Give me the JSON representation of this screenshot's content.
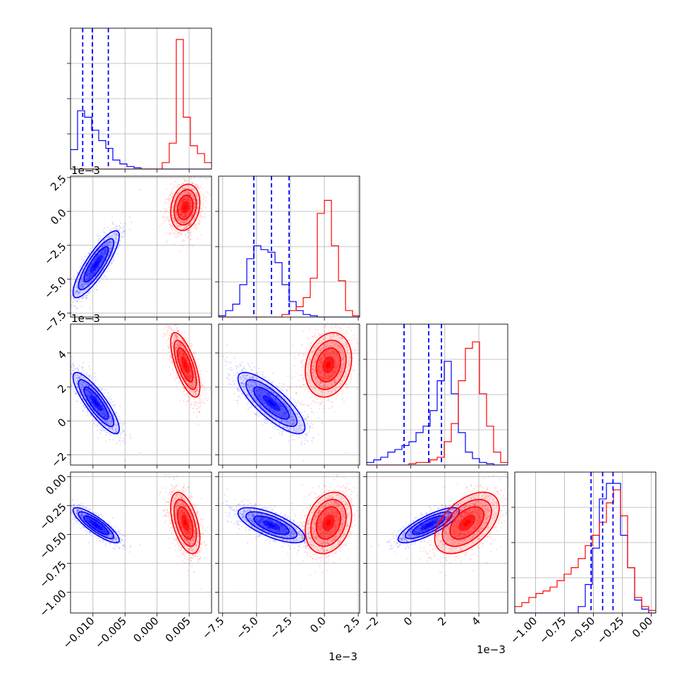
{
  "chart_data": {
    "type": "corner",
    "series_colors": {
      "blue": "#0000ff",
      "red": "#ff0000"
    },
    "quantile_line_style": "dashed",
    "grid": true,
    "offset_labels": {
      "row1": "1e−3",
      "row2": "1e−3",
      "col1": "1e−3",
      "col2": "1e−3"
    },
    "axes": [
      {
        "range": [
          -0.0135,
          0.0085
        ],
        "ticks": [
          -0.01,
          -0.005,
          0.0,
          0.005
        ],
        "tick_labels": [
          "−0.010",
          "−0.005",
          "0.000",
          "0.005"
        ]
      },
      {
        "range": [
          -7.8,
          2.6
        ],
        "ticks": [
          -7.5,
          -5.0,
          -2.5,
          0.0,
          2.5
        ],
        "tick_labels": [
          "−7.5",
          "−5.0",
          "−2.5",
          "0.0",
          "2.5"
        ]
      },
      {
        "range": [
          -2.6,
          5.7
        ],
        "ticks": [
          -2,
          0,
          2,
          4
        ],
        "tick_labels": [
          "−2",
          "0",
          "2",
          "4"
        ]
      },
      {
        "range": [
          -1.18,
          0.04
        ],
        "ticks": [
          -1.0,
          -0.75,
          -0.5,
          -0.25,
          0.0
        ],
        "tick_labels": [
          "−1.00",
          "−0.75",
          "−0.50",
          "−0.25",
          "0.00"
        ]
      }
    ],
    "marginals": [
      {
        "blue": {
          "edges_start": -0.0135,
          "bin_width": 0.0011,
          "heights": [
            0.15,
            0.45,
            0.4,
            0.3,
            0.22,
            0.16,
            0.07,
            0.04,
            0.02,
            0.01,
            0,
            0,
            0,
            0,
            0,
            0,
            0,
            0,
            0,
            0
          ]
        },
        "red": {
          "edges_start": -0.0135,
          "bin_width": 0.0011,
          "heights": [
            0,
            0,
            0,
            0,
            0,
            0,
            0,
            0,
            0,
            0,
            0,
            0,
            0,
            0.05,
            0.2,
            1.0,
            0.4,
            0.18,
            0.12,
            0.05
          ]
        },
        "quantiles": [
          -0.0116,
          -0.0101,
          -0.0076
        ]
      },
      {
        "blue": {
          "edges_start": -7.8,
          "bin_width": 0.52,
          "heights": [
            0.01,
            0.05,
            0.1,
            0.25,
            0.45,
            0.55,
            0.52,
            0.5,
            0.42,
            0.25,
            0.12,
            0.05,
            0.02,
            0.01,
            0,
            0,
            0,
            0,
            0,
            0
          ]
        },
        "red": {
          "edges_start": -7.8,
          "bin_width": 0.52,
          "heights": [
            0,
            0,
            0,
            0,
            0,
            0,
            0,
            0,
            0,
            0.02,
            0.05,
            0.08,
            0.15,
            0.3,
            0.8,
            0.9,
            0.55,
            0.28,
            0.05,
            0.01
          ]
        },
        "quantiles": [
          -5.2,
          -3.9,
          -2.6
        ]
      },
      {
        "blue": {
          "edges_start": -2.6,
          "bin_width": 0.415,
          "heights": [
            0.02,
            0.04,
            0.06,
            0.1,
            0.12,
            0.15,
            0.18,
            0.25,
            0.3,
            0.42,
            0.65,
            0.8,
            0.55,
            0.25,
            0.1,
            0.05,
            0.02,
            0.01,
            0,
            0
          ]
        },
        "red": {
          "edges_start": -2.6,
          "bin_width": 0.415,
          "heights": [
            0,
            0,
            0,
            0,
            0,
            0,
            0.01,
            0.02,
            0.02,
            0.04,
            0.06,
            0.18,
            0.32,
            0.65,
            0.9,
            0.95,
            0.55,
            0.3,
            0.1,
            0.02
          ]
        },
        "quantiles": [
          -0.4,
          1.05,
          1.8
        ]
      },
      {
        "blue": {
          "edges_start": -1.18,
          "bin_width": 0.061,
          "heights": [
            0,
            0,
            0,
            0,
            0,
            0,
            0,
            0,
            0,
            0.05,
            0.22,
            0.5,
            0.88,
            1.0,
            1.0,
            0.6,
            0.35,
            0.1,
            0.03,
            0
          ]
        },
        "red": {
          "edges_start": -1.18,
          "bin_width": 0.061,
          "heights": [
            0.05,
            0.08,
            0.12,
            0.15,
            0.17,
            0.2,
            0.25,
            0.3,
            0.35,
            0.42,
            0.52,
            0.6,
            0.7,
            0.85,
            0.95,
            0.75,
            0.35,
            0.12,
            0.05,
            0.02
          ]
        },
        "quantiles": [
          -0.52,
          -0.42,
          -0.33
        ]
      }
    ],
    "joint_2d": {
      "blue": {
        "means": [
          -0.0095,
          -3.9,
          1.05,
          -0.42
        ],
        "sds": [
          0.0019,
          1.3,
          0.95,
          0.08
        ],
        "corr": [
          [
            1,
            0.85,
            -0.85,
            -0.85
          ],
          [
            0.85,
            1,
            -0.8,
            -0.7
          ],
          [
            -0.85,
            -0.8,
            1,
            0.8
          ],
          [
            -0.85,
            -0.7,
            0.8,
            1
          ]
        ]
      },
      "red": {
        "means": [
          0.0044,
          0.3,
          3.3,
          -0.4
        ],
        "sds": [
          0.0012,
          0.9,
          1.0,
          0.14
        ],
        "corr": [
          [
            1,
            0.2,
            -0.7,
            -0.5
          ],
          [
            0.2,
            1,
            0.2,
            0.25
          ],
          [
            -0.7,
            0.2,
            1,
            0.5
          ],
          [
            -0.5,
            0.25,
            0.5,
            1
          ]
        ]
      }
    }
  }
}
